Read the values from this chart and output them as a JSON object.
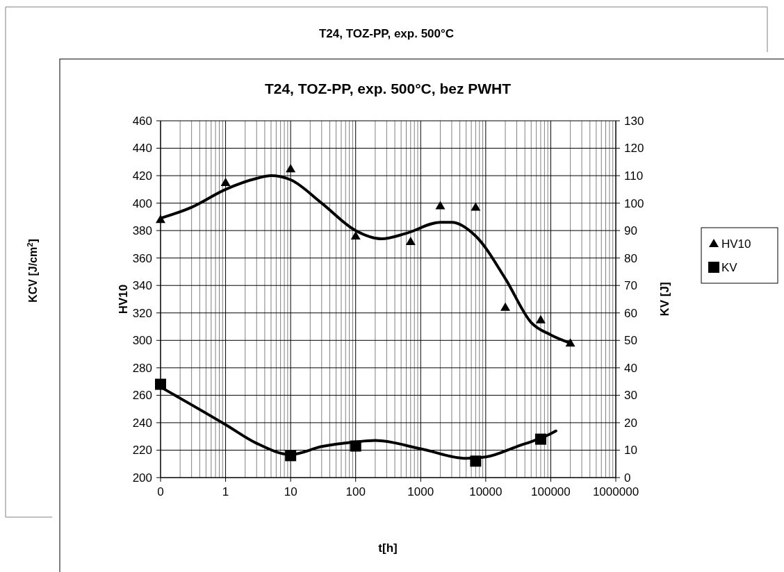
{
  "chart_data": {
    "type": "scatter",
    "title": "T24, TOZ-PP, exp. 500°C",
    "subtitle": "T24, TOZ-PP, exp. 500°C, bez PWHT",
    "xlabel": "t[h]",
    "ylabel": "HV10",
    "y2label": "KV [J]",
    "annotations": [
      "KCV [J/cm$^{2}$]"
    ],
    "log": "x",
    "xlim": [
      0.1,
      1000000
    ],
    "xticks": [
      {
        "value": 0.1,
        "label": "0"
      },
      1,
      10,
      100,
      1000,
      10000,
      100000,
      1000000
    ],
    "ylim": [
      200,
      460
    ],
    "yticks": [
      200,
      220,
      240,
      260,
      280,
      300,
      320,
      340,
      360,
      380,
      400,
      420,
      440,
      460
    ],
    "y2lim": [
      0,
      130
    ],
    "y2ticks": [
      0,
      10,
      20,
      30,
      40,
      50,
      60,
      70,
      80,
      90,
      100,
      110,
      120,
      130
    ],
    "grid": true,
    "legend": "right",
    "series": [
      {
        "name": "HV10",
        "marker": "triangle",
        "color": "#000000",
        "x": [
          0.1,
          1,
          10,
          100,
          700,
          2000,
          7000,
          20000,
          70000,
          200000
        ],
        "values": [
          388,
          415,
          425,
          376,
          372,
          398,
          397,
          324,
          315,
          298
        ]
      },
      {
        "name": "KV",
        "marker": "square",
        "color": "#000000",
        "axis": "y2",
        "x": [
          0.1,
          10,
          100,
          7000,
          70000
        ],
        "values": [
          34,
          8,
          11.5,
          6,
          14
        ]
      },
      {
        "type": "line",
        "marker": "none",
        "line_style": "solid",
        "color": "#000000",
        "x": [
          0.1,
          0.3,
          1,
          3,
          5,
          10,
          30,
          100,
          250,
          600,
          2000,
          3000,
          7000,
          20000,
          50000,
          100000,
          200000
        ],
        "values": [
          389,
          397,
          410,
          418,
          420,
          417,
          400,
          380,
          374,
          378,
          386,
          386,
          376,
          345,
          313,
          304,
          298
        ]
      },
      {
        "type": "line",
        "marker": "none",
        "line_style": "solid",
        "color": "#000000",
        "axis": "y2",
        "x": [
          0.1,
          1,
          3,
          10,
          30,
          100,
          200,
          1000,
          5000,
          10000,
          30000,
          100000,
          120000
        ],
        "values": [
          33,
          19.3,
          12.5,
          8.4,
          11.3,
          13,
          13.5,
          10.5,
          7,
          7.5,
          11.3,
          16,
          17
        ]
      }
    ]
  }
}
